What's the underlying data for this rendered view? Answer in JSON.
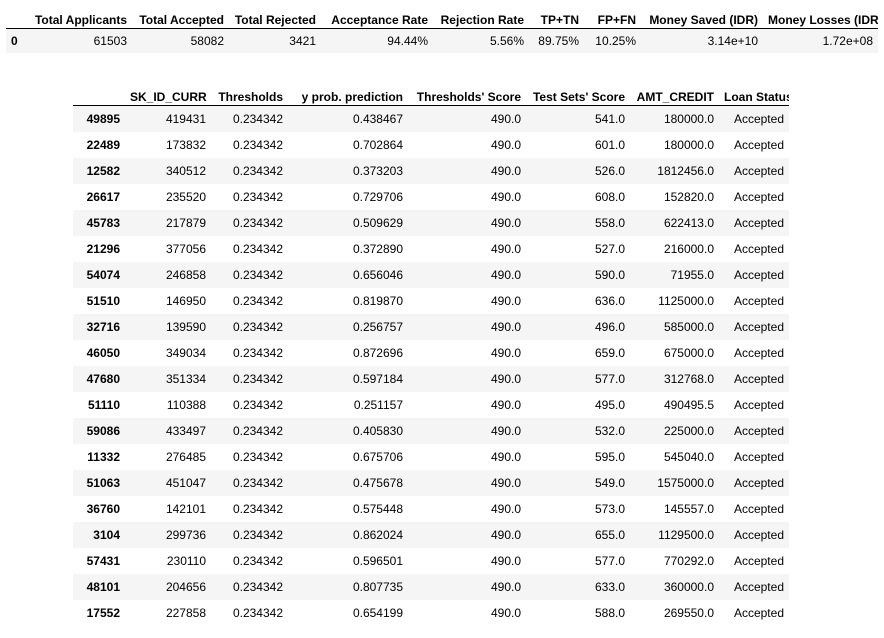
{
  "summary": {
    "columns": [
      "",
      "Total Applicants",
      "Total Accepted",
      "Total Rejected",
      "Acceptance Rate",
      "Rejection Rate",
      "TP+TN",
      "FP+FN",
      "Money Saved (IDR)",
      "Money Losses (IDR)"
    ],
    "row": [
      "0",
      "61503",
      "58082",
      "3421",
      "94.44%",
      "5.56%",
      "89.75%",
      "10.25%",
      "3.14e+10",
      "1.72e+08"
    ]
  },
  "detail": {
    "columns": [
      "",
      "SK_ID_CURR",
      "Thresholds",
      "y prob. prediction",
      "Thresholds' Score",
      "Test Sets' Score",
      "AMT_CREDIT",
      "Loan Status"
    ],
    "rows": [
      [
        "49895",
        "419431",
        "0.234342",
        "0.438467",
        "490.0",
        "541.0",
        "180000.0",
        "Accepted"
      ],
      [
        "22489",
        "173832",
        "0.234342",
        "0.702864",
        "490.0",
        "601.0",
        "180000.0",
        "Accepted"
      ],
      [
        "12582",
        "340512",
        "0.234342",
        "0.373203",
        "490.0",
        "526.0",
        "1812456.0",
        "Accepted"
      ],
      [
        "26617",
        "235520",
        "0.234342",
        "0.729706",
        "490.0",
        "608.0",
        "152820.0",
        "Accepted"
      ],
      [
        "45783",
        "217879",
        "0.234342",
        "0.509629",
        "490.0",
        "558.0",
        "622413.0",
        "Accepted"
      ],
      [
        "21296",
        "377056",
        "0.234342",
        "0.372890",
        "490.0",
        "527.0",
        "216000.0",
        "Accepted"
      ],
      [
        "54074",
        "246858",
        "0.234342",
        "0.656046",
        "490.0",
        "590.0",
        "71955.0",
        "Accepted"
      ],
      [
        "51510",
        "146950",
        "0.234342",
        "0.819870",
        "490.0",
        "636.0",
        "1125000.0",
        "Accepted"
      ],
      [
        "32716",
        "139590",
        "0.234342",
        "0.256757",
        "490.0",
        "496.0",
        "585000.0",
        "Accepted"
      ],
      [
        "46050",
        "349034",
        "0.234342",
        "0.872696",
        "490.0",
        "659.0",
        "675000.0",
        "Accepted"
      ],
      [
        "47680",
        "351334",
        "0.234342",
        "0.597184",
        "490.0",
        "577.0",
        "312768.0",
        "Accepted"
      ],
      [
        "51110",
        "110388",
        "0.234342",
        "0.251157",
        "490.0",
        "495.0",
        "490495.5",
        "Accepted"
      ],
      [
        "59086",
        "433497",
        "0.234342",
        "0.405830",
        "490.0",
        "532.0",
        "225000.0",
        "Accepted"
      ],
      [
        "11332",
        "276485",
        "0.234342",
        "0.675706",
        "490.0",
        "595.0",
        "545040.0",
        "Accepted"
      ],
      [
        "51063",
        "451047",
        "0.234342",
        "0.475678",
        "490.0",
        "549.0",
        "1575000.0",
        "Accepted"
      ],
      [
        "36760",
        "142101",
        "0.234342",
        "0.575448",
        "490.0",
        "573.0",
        "145557.0",
        "Accepted"
      ],
      [
        "3104",
        "299736",
        "0.234342",
        "0.862024",
        "490.0",
        "655.0",
        "1129500.0",
        "Accepted"
      ],
      [
        "57431",
        "230110",
        "0.234342",
        "0.596501",
        "490.0",
        "577.0",
        "770292.0",
        "Accepted"
      ],
      [
        "48101",
        "204656",
        "0.234342",
        "0.807735",
        "490.0",
        "633.0",
        "360000.0",
        "Accepted"
      ],
      [
        "17552",
        "227858",
        "0.234342",
        "0.654199",
        "490.0",
        "588.0",
        "269550.0",
        "Accepted"
      ]
    ]
  }
}
